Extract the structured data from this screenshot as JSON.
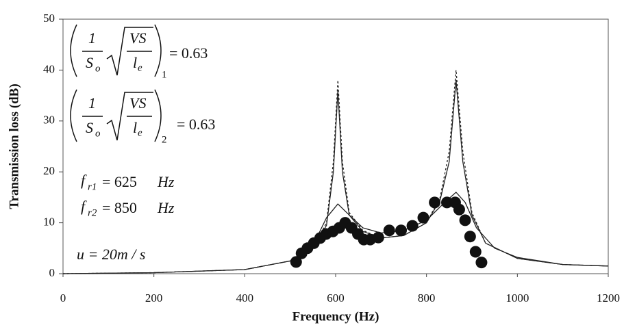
{
  "chart_data": {
    "type": "line",
    "x_label": "Frequency (Hz)",
    "y_label": "Transmission loss (dB)",
    "xlim": [
      0,
      1200
    ],
    "xticks": [
      0,
      200,
      400,
      600,
      800,
      1000,
      1200
    ],
    "ylim": [
      0,
      50
    ],
    "yticks": [
      0,
      10,
      20,
      30,
      40,
      50
    ],
    "series": [
      {
        "style": "dashed",
        "color": "#222222",
        "x": [
          0,
          200,
          400,
          500,
          550,
          580,
          595,
          605,
          615,
          630,
          660,
          700,
          750,
          800,
          830,
          850,
          865,
          880,
          900,
          930,
          1000,
          1100,
          1200
        ],
        "values": [
          0,
          0.2,
          0.8,
          2.5,
          5,
          10,
          22,
          38,
          22,
          12,
          8.5,
          7,
          7.5,
          10,
          15,
          24,
          40,
          24,
          12,
          6,
          3,
          1.8,
          1.5
        ]
      },
      {
        "style": "solid",
        "color": "#222222",
        "x": [
          0,
          200,
          400,
          500,
          550,
          580,
          595,
          605,
          615,
          630,
          660,
          700,
          750,
          800,
          830,
          850,
          865,
          880,
          900,
          930,
          1000,
          1100,
          1200
        ],
        "values": [
          0,
          0.2,
          0.8,
          2.5,
          5,
          9.5,
          20,
          36,
          20,
          11.5,
          8.3,
          7,
          7.5,
          10,
          14.5,
          22,
          38,
          22,
          11.5,
          6,
          3,
          1.8,
          1.5
        ]
      },
      {
        "style": "solid",
        "color": "#222222",
        "x": [
          0,
          200,
          400,
          500,
          550,
          580,
          605,
          630,
          660,
          700,
          750,
          800,
          840,
          865,
          885,
          910,
          950,
          1000,
          1100,
          1200
        ],
        "values": [
          0,
          0.2,
          0.8,
          2.5,
          5.5,
          11,
          13.7,
          11.5,
          9,
          8,
          8.5,
          10.5,
          14,
          16,
          14,
          9,
          5,
          3.2,
          1.8,
          1.5
        ]
      },
      {
        "style": "markers",
        "color": "#111111",
        "x": [
          513,
          525,
          538,
          552,
          566,
          579,
          594,
          608,
          621,
          635,
          649,
          662,
          676,
          694,
          718,
          744,
          769,
          793,
          818,
          845,
          863,
          872,
          885,
          896,
          908,
          921
        ],
        "values": [
          2.3,
          4,
          5,
          6,
          7,
          7.8,
          8.3,
          9,
          10,
          9,
          7.8,
          6.7,
          6.7,
          7.1,
          8.5,
          8.5,
          9.4,
          11,
          14,
          14,
          14,
          12.6,
          10.5,
          7.3,
          4.3,
          2.2
        ]
      }
    ],
    "annotations": {
      "formula1": {
        "num": "1",
        "den": "S",
        "den_sub": "o",
        "root_num": "VS",
        "root_den": "l",
        "root_den_sub": "e",
        "subscript": "1",
        "equals": "= 0.63"
      },
      "formula2": {
        "num": "1",
        "den": "S",
        "den_sub": "o",
        "root_num": "VS",
        "root_den": "l",
        "root_den_sub": "e",
        "subscript": "2",
        "equals": "= 0.63"
      },
      "fr1": {
        "symbol": "f",
        "sub": "r1",
        "equals": "= 625",
        "unit": "Hz"
      },
      "fr2": {
        "symbol": "f",
        "sub": "r2",
        "equals": "= 850",
        "unit": "Hz"
      },
      "u": {
        "text": "u = 20m / s"
      }
    }
  }
}
